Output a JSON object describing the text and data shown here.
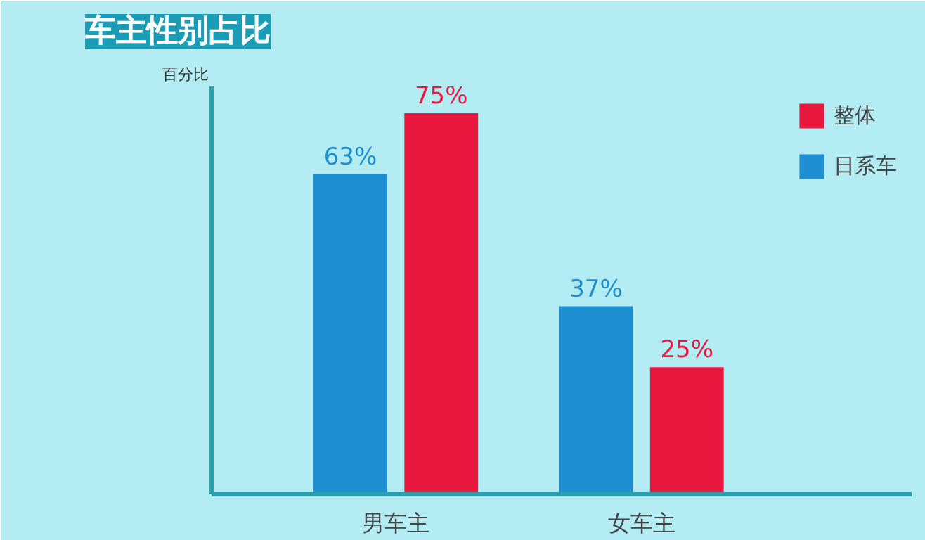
{
  "chart_data": {
    "type": "bar",
    "title": "车主性别占比",
    "ylabel": "百分比",
    "categories": [
      "男车主",
      "女车主"
    ],
    "series": [
      {
        "name": "日系车",
        "color": "#1e8fd2",
        "values": [
          63,
          37
        ],
        "value_labels": [
          "63%",
          "37%"
        ]
      },
      {
        "name": "整体",
        "color": "#e8183f",
        "values": [
          75,
          25
        ],
        "value_labels": [
          "75%",
          "25%"
        ]
      }
    ],
    "tick_labels": "x",
    "legend": "top right",
    "grid": false
  }
}
